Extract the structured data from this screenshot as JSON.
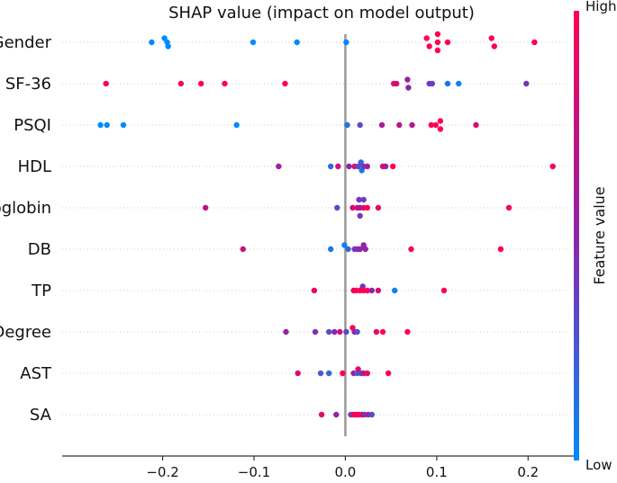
{
  "chart_data": {
    "type": "scatter",
    "title": "SHAP value (impact on model output)",
    "xlabel": "",
    "x_ticks": [
      -0.2,
      -0.1,
      0.0,
      0.1,
      0.2
    ],
    "x_tick_labels": [
      "−0.2",
      "−0.1",
      "0.0",
      "0.1",
      "0.2"
    ],
    "xlim": [
      -0.31,
      0.25
    ],
    "colorbar": {
      "label": "Feature value",
      "high_label": "High",
      "low_label": "Low",
      "high_color": "#ff0052",
      "mid_color": "#8e24aa",
      "low_color": "#008bfb"
    },
    "features": [
      {
        "name": "Gender",
        "points": [
          {
            "x": -0.212,
            "dy": 0,
            "c": 0
          },
          {
            "x": -0.198,
            "dy": -1,
            "c": 0
          },
          {
            "x": -0.195,
            "dy": 0,
            "c": 0
          },
          {
            "x": -0.194,
            "dy": 1,
            "c": 0
          },
          {
            "x": -0.101,
            "dy": 0,
            "c": 0
          },
          {
            "x": -0.053,
            "dy": 0,
            "c": 0
          },
          {
            "x": 0.001,
            "dy": 0,
            "c": 0
          },
          {
            "x": 0.089,
            "dy": -1,
            "c": 1
          },
          {
            "x": 0.092,
            "dy": 1,
            "c": 1
          },
          {
            "x": 0.101,
            "dy": -2,
            "c": 1
          },
          {
            "x": 0.101,
            "dy": 0,
            "c": 1
          },
          {
            "x": 0.101,
            "dy": 2,
            "c": 1
          },
          {
            "x": 0.112,
            "dy": 0,
            "c": 1
          },
          {
            "x": 0.16,
            "dy": -1,
            "c": 1
          },
          {
            "x": 0.163,
            "dy": 1,
            "c": 1
          },
          {
            "x": 0.207,
            "dy": 0,
            "c": 1
          }
        ]
      },
      {
        "name": "SF-36",
        "points": [
          {
            "x": -0.262,
            "dy": 0,
            "c": 1
          },
          {
            "x": -0.18,
            "dy": 0,
            "c": 1
          },
          {
            "x": -0.158,
            "dy": 0,
            "c": 1
          },
          {
            "x": -0.132,
            "dy": 0,
            "c": 1
          },
          {
            "x": -0.066,
            "dy": 0,
            "c": 1
          },
          {
            "x": 0.053,
            "dy": 0,
            "c": 0.85
          },
          {
            "x": 0.056,
            "dy": 0,
            "c": 0.8
          },
          {
            "x": 0.068,
            "dy": -1,
            "c": 0.55
          },
          {
            "x": 0.069,
            "dy": 1,
            "c": 0.5
          },
          {
            "x": 0.092,
            "dy": 0,
            "c": 0.4
          },
          {
            "x": 0.095,
            "dy": 0,
            "c": 0.35
          },
          {
            "x": 0.112,
            "dy": 0,
            "c": 0.1
          },
          {
            "x": 0.124,
            "dy": 0,
            "c": 0.05
          },
          {
            "x": 0.198,
            "dy": 0,
            "c": 0.4
          }
        ]
      },
      {
        "name": "PSQI",
        "points": [
          {
            "x": -0.268,
            "dy": 0,
            "c": 0
          },
          {
            "x": -0.261,
            "dy": 0,
            "c": 0
          },
          {
            "x": -0.243,
            "dy": 0,
            "c": 0
          },
          {
            "x": -0.119,
            "dy": 0,
            "c": 0
          },
          {
            "x": 0.002,
            "dy": 0,
            "c": 0.15
          },
          {
            "x": 0.016,
            "dy": 0,
            "c": 0.3
          },
          {
            "x": 0.04,
            "dy": 0,
            "c": 0.6
          },
          {
            "x": 0.059,
            "dy": 0,
            "c": 0.7
          },
          {
            "x": 0.073,
            "dy": 0,
            "c": 0.7
          },
          {
            "x": 0.094,
            "dy": 0,
            "c": 0.95
          },
          {
            "x": 0.099,
            "dy": 0,
            "c": 1
          },
          {
            "x": 0.104,
            "dy": -1,
            "c": 1
          },
          {
            "x": 0.104,
            "dy": 1,
            "c": 1
          },
          {
            "x": 0.143,
            "dy": 0,
            "c": 0.8
          }
        ]
      },
      {
        "name": "HDL",
        "points": [
          {
            "x": -0.073,
            "dy": 0,
            "c": 0.6
          },
          {
            "x": -0.016,
            "dy": 0,
            "c": 0.15
          },
          {
            "x": -0.008,
            "dy": 0,
            "c": 0.8
          },
          {
            "x": 0.004,
            "dy": 0,
            "c": 0.5
          },
          {
            "x": 0.01,
            "dy": 0,
            "c": 0.8
          },
          {
            "x": 0.014,
            "dy": 0,
            "c": 0.3
          },
          {
            "x": 0.017,
            "dy": -1,
            "c": 0.2
          },
          {
            "x": 0.018,
            "dy": 1,
            "c": 0.1
          },
          {
            "x": 0.02,
            "dy": 0,
            "c": 0.4
          },
          {
            "x": 0.024,
            "dy": 0,
            "c": 0.6
          },
          {
            "x": 0.041,
            "dy": 0,
            "c": 0.85
          },
          {
            "x": 0.044,
            "dy": 0,
            "c": 0.6
          },
          {
            "x": 0.052,
            "dy": 0,
            "c": 1
          },
          {
            "x": 0.227,
            "dy": 0,
            "c": 1
          }
        ]
      },
      {
        "name": "Hemoglobin",
        "points": [
          {
            "x": -0.153,
            "dy": 0,
            "c": 0.7
          },
          {
            "x": -0.009,
            "dy": 0,
            "c": 0.3
          },
          {
            "x": 0.008,
            "dy": 0,
            "c": 0.8
          },
          {
            "x": 0.013,
            "dy": 0,
            "c": 0.9
          },
          {
            "x": 0.015,
            "dy": -2,
            "c": 0.4
          },
          {
            "x": 0.02,
            "dy": -2,
            "c": 0.35
          },
          {
            "x": 0.016,
            "dy": 0,
            "c": 0.5
          },
          {
            "x": 0.02,
            "dy": 0,
            "c": 0.9
          },
          {
            "x": 0.024,
            "dy": 0,
            "c": 1
          },
          {
            "x": 0.016,
            "dy": 2,
            "c": 0.4
          },
          {
            "x": 0.036,
            "dy": 0,
            "c": 0.85
          },
          {
            "x": 0.179,
            "dy": 0,
            "c": 1
          }
        ]
      },
      {
        "name": "DB",
        "points": [
          {
            "x": -0.112,
            "dy": 0,
            "c": 0.75
          },
          {
            "x": -0.016,
            "dy": 0,
            "c": 0.1
          },
          {
            "x": -0.001,
            "dy": -1,
            "c": 0.05
          },
          {
            "x": 0.003,
            "dy": 0,
            "c": 0.2
          },
          {
            "x": 0.01,
            "dy": 0,
            "c": 0.4
          },
          {
            "x": 0.013,
            "dy": 0,
            "c": 0.45
          },
          {
            "x": 0.016,
            "dy": 0,
            "c": 0.5
          },
          {
            "x": 0.02,
            "dy": -1,
            "c": 0.55
          },
          {
            "x": 0.022,
            "dy": 0,
            "c": 0.5
          },
          {
            "x": 0.072,
            "dy": 0,
            "c": 1
          },
          {
            "x": 0.17,
            "dy": 0,
            "c": 1
          }
        ]
      },
      {
        "name": "TP",
        "points": [
          {
            "x": -0.034,
            "dy": 0,
            "c": 0.9
          },
          {
            "x": 0.009,
            "dy": 0,
            "c": 0.9
          },
          {
            "x": 0.012,
            "dy": 0,
            "c": 1
          },
          {
            "x": 0.016,
            "dy": 0,
            "c": 1
          },
          {
            "x": 0.019,
            "dy": -1,
            "c": 0.45
          },
          {
            "x": 0.02,
            "dy": 0,
            "c": 1
          },
          {
            "x": 0.024,
            "dy": 0,
            "c": 1
          },
          {
            "x": 0.029,
            "dy": 0,
            "c": 0.5
          },
          {
            "x": 0.036,
            "dy": 0,
            "c": 0.8
          },
          {
            "x": 0.054,
            "dy": 0,
            "c": 0.05
          },
          {
            "x": 0.108,
            "dy": 0,
            "c": 1
          }
        ]
      },
      {
        "name": "Degree",
        "points": [
          {
            "x": -0.065,
            "dy": 0,
            "c": 0.55
          },
          {
            "x": -0.033,
            "dy": 0,
            "c": 0.45
          },
          {
            "x": -0.018,
            "dy": 0,
            "c": 0.3
          },
          {
            "x": -0.012,
            "dy": 0,
            "c": 0.5
          },
          {
            "x": -0.006,
            "dy": 0,
            "c": 0.8
          },
          {
            "x": 0.001,
            "dy": 0,
            "c": 0.35
          },
          {
            "x": 0.008,
            "dy": -1,
            "c": 1
          },
          {
            "x": 0.01,
            "dy": 0,
            "c": 0.5
          },
          {
            "x": 0.013,
            "dy": 0,
            "c": 0.3
          },
          {
            "x": 0.034,
            "dy": 0,
            "c": 0.9
          },
          {
            "x": 0.041,
            "dy": 0,
            "c": 1
          },
          {
            "x": 0.068,
            "dy": 0,
            "c": 1
          }
        ]
      },
      {
        "name": "AST",
        "points": [
          {
            "x": -0.052,
            "dy": 0,
            "c": 0.8
          },
          {
            "x": -0.027,
            "dy": 0,
            "c": 0.25
          },
          {
            "x": -0.018,
            "dy": 0,
            "c": 0.2
          },
          {
            "x": -0.003,
            "dy": 0,
            "c": 1
          },
          {
            "x": 0.009,
            "dy": 0,
            "c": 0.6
          },
          {
            "x": 0.013,
            "dy": 0,
            "c": 0.2
          },
          {
            "x": 0.014,
            "dy": -1,
            "c": 0.9
          },
          {
            "x": 0.017,
            "dy": 0,
            "c": 0.3
          },
          {
            "x": 0.02,
            "dy": 0,
            "c": 0.6
          },
          {
            "x": 0.024,
            "dy": 0,
            "c": 0.95
          },
          {
            "x": 0.047,
            "dy": 0,
            "c": 1
          }
        ]
      },
      {
        "name": "SA",
        "points": [
          {
            "x": -0.026,
            "dy": 0,
            "c": 0.9
          },
          {
            "x": -0.01,
            "dy": 0,
            "c": 0.5
          },
          {
            "x": 0.006,
            "dy": 0,
            "c": 0.35
          },
          {
            "x": 0.009,
            "dy": 0,
            "c": 1
          },
          {
            "x": 0.012,
            "dy": 0,
            "c": 0.9
          },
          {
            "x": 0.015,
            "dy": 0,
            "c": 1
          },
          {
            "x": 0.018,
            "dy": 0,
            "c": 0.95
          },
          {
            "x": 0.021,
            "dy": 0,
            "c": 0.4
          },
          {
            "x": 0.025,
            "dy": 0,
            "c": 0.6
          },
          {
            "x": 0.029,
            "dy": 0,
            "c": 0.3
          }
        ]
      }
    ]
  }
}
